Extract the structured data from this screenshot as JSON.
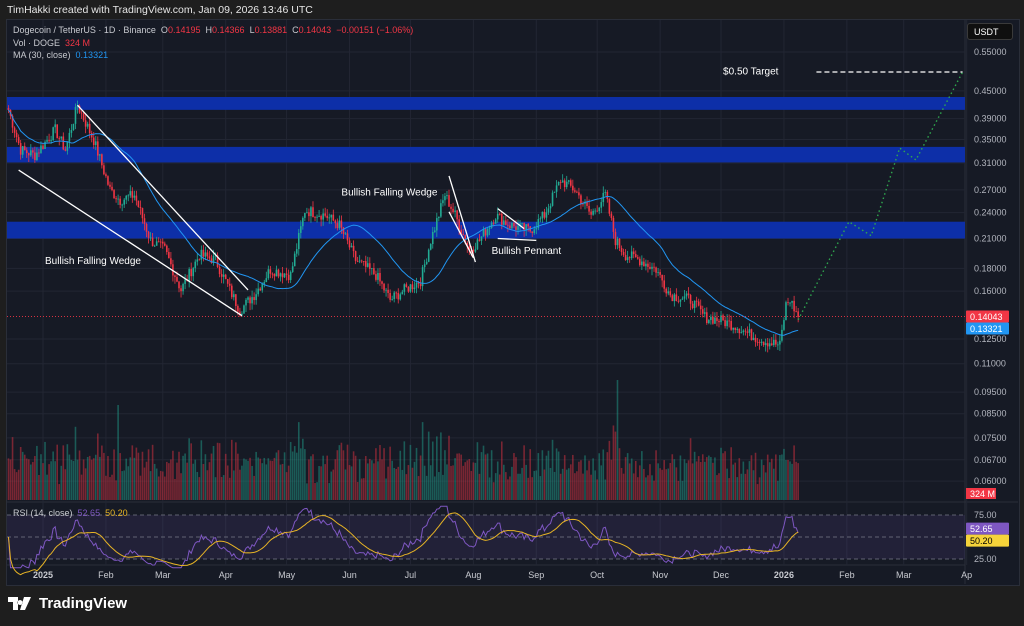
{
  "credit": "TimHakki created with TradingView.com, Jan 09, 2026 13:46 UTC",
  "legend": {
    "symbol": "Dogecoin / TetherUS · 1D · Binance",
    "o_label": "O",
    "o": "0.14195",
    "h_label": "H",
    "h": "0.14366",
    "l_label": "L",
    "l": "0.13881",
    "c_label": "C",
    "c": "0.14043",
    "change": "−0.00151 (−1.06%)",
    "vol_label": "Vol · DOGE",
    "vol": "324 M",
    "ma_label": "MA (30, close)",
    "ma": "0.13321",
    "rsi_label": "RSI (14, close)",
    "rsi": "52.65",
    "rsi_ma": "50.20"
  },
  "currency_button": "USDT",
  "footer_brand": "TradingView",
  "colors": {
    "up": "#22ab94",
    "down": "#f23645",
    "ma": "#2196f3",
    "zone": "#0d2fa8",
    "rsi": "#7e57c2",
    "rsi_ma": "#e6b325",
    "projection": "#2fa84f"
  },
  "chart_data": {
    "type": "candlestick",
    "title": "Dogecoin / TetherUS · 1D · Binance",
    "x_unit": "days since 2025-01-01",
    "y_scale": "log",
    "ylim": [
      0.055,
      0.6
    ],
    "price_ticks": [
      "0.55000",
      "0.45000",
      "0.39000",
      "0.35000",
      "0.31000",
      "0.27000",
      "0.24000",
      "0.21000",
      "0.18000",
      "0.16000",
      "0.12500",
      "0.11000",
      "0.09500",
      "0.08500",
      "0.07500",
      "0.06700",
      "0.06000"
    ],
    "time_ticks": [
      {
        "label": "2025",
        "day": 0
      },
      {
        "label": "Feb",
        "day": 31
      },
      {
        "label": "Mar",
        "day": 59
      },
      {
        "label": "Apr",
        "day": 90
      },
      {
        "label": "May",
        "day": 120
      },
      {
        "label": "Jun",
        "day": 151
      },
      {
        "label": "Jul",
        "day": 181
      },
      {
        "label": "Aug",
        "day": 212
      },
      {
        "label": "Sep",
        "day": 243
      },
      {
        "label": "Oct",
        "day": 273
      },
      {
        "label": "Nov",
        "day": 304
      },
      {
        "label": "Dec",
        "day": 334
      },
      {
        "label": "2026",
        "day": 365
      },
      {
        "label": "Feb",
        "day": 396
      },
      {
        "label": "Mar",
        "day": 424
      },
      {
        "label": "Ap",
        "day": 455
      }
    ],
    "close_path": [
      [
        -17,
        0.408
      ],
      [
        -11,
        0.332
      ],
      [
        -4,
        0.323
      ],
      [
        6,
        0.368
      ],
      [
        11,
        0.332
      ],
      [
        17,
        0.418
      ],
      [
        25,
        0.349
      ],
      [
        33,
        0.27
      ],
      [
        38,
        0.256
      ],
      [
        45,
        0.263
      ],
      [
        53,
        0.208
      ],
      [
        60,
        0.198
      ],
      [
        68,
        0.161
      ],
      [
        77,
        0.193
      ],
      [
        85,
        0.188
      ],
      [
        92,
        0.161
      ],
      [
        97,
        0.145
      ],
      [
        104,
        0.157
      ],
      [
        112,
        0.179
      ],
      [
        122,
        0.174
      ],
      [
        129,
        0.243
      ],
      [
        139,
        0.237
      ],
      [
        146,
        0.225
      ],
      [
        154,
        0.188
      ],
      [
        164,
        0.174
      ],
      [
        171,
        0.153
      ],
      [
        178,
        0.161
      ],
      [
        186,
        0.169
      ],
      [
        191,
        0.208
      ],
      [
        198,
        0.263
      ],
      [
        203,
        0.237
      ],
      [
        210,
        0.198
      ],
      [
        215,
        0.208
      ],
      [
        223,
        0.237
      ],
      [
        230,
        0.225
      ],
      [
        240,
        0.219
      ],
      [
        247,
        0.237
      ],
      [
        255,
        0.284
      ],
      [
        262,
        0.27
      ],
      [
        270,
        0.237
      ],
      [
        277,
        0.263
      ],
      [
        282,
        0.208
      ],
      [
        287,
        0.193
      ],
      [
        294,
        0.188
      ],
      [
        302,
        0.179
      ],
      [
        309,
        0.157
      ],
      [
        319,
        0.153
      ],
      [
        326,
        0.14
      ],
      [
        333,
        0.138
      ],
      [
        341,
        0.134
      ],
      [
        348,
        0.128
      ],
      [
        355,
        0.124
      ],
      [
        363,
        0.121
      ],
      [
        366,
        0.149
      ],
      [
        368,
        0.153
      ],
      [
        372,
        0.14
      ]
    ],
    "last_price": 0.14043,
    "ma_last": 0.13321,
    "volume_last": "324 M",
    "zones": [
      [
        0.408,
        0.436
      ],
      [
        0.311,
        0.337
      ],
      [
        0.21,
        0.229
      ]
    ],
    "drawings": [
      {
        "name": "wedge1-upper",
        "points": [
          [
            17,
            0.418
          ],
          [
            101,
            0.161
          ]
        ]
      },
      {
        "name": "wedge1-lower",
        "points": [
          [
            -12,
            0.299
          ],
          [
            98,
            0.141
          ]
        ]
      },
      {
        "name": "wedge2-upper",
        "points": [
          [
            200,
            0.29
          ],
          [
            213,
            0.186
          ]
        ]
      },
      {
        "name": "wedge2-lower",
        "points": [
          [
            200,
            0.241
          ],
          [
            212,
            0.19
          ]
        ]
      },
      {
        "name": "pennant-upper",
        "points": [
          [
            224,
            0.245
          ],
          [
            237,
            0.221
          ]
        ]
      },
      {
        "name": "pennant-lower",
        "points": [
          [
            224,
            0.21
          ],
          [
            243,
            0.208
          ]
        ]
      }
    ],
    "projection": [
      [
        372,
        0.138
      ],
      [
        397,
        0.229
      ],
      [
        408,
        0.213
      ],
      [
        422,
        0.335
      ],
      [
        430,
        0.315
      ],
      [
        453,
        0.496
      ]
    ],
    "target": {
      "price": 0.496,
      "from_day": 381,
      "to_day": 453
    },
    "annotations": [
      {
        "text": "Bullish Falling Wedge",
        "day": 1,
        "price": 0.184
      },
      {
        "text": "Bullish Falling Wedge",
        "day": 147,
        "price": 0.262
      },
      {
        "text": "Bullish Pennant",
        "day": 221,
        "price": 0.194
      },
      {
        "text": "$0.50 Target",
        "day": 335,
        "price": 0.49
      }
    ],
    "rsi": {
      "period": 14,
      "value": 52.65,
      "ma": 50.2,
      "levels": [
        75,
        50,
        25
      ],
      "tick_labels": [
        "75.00",
        "25.00"
      ]
    }
  }
}
